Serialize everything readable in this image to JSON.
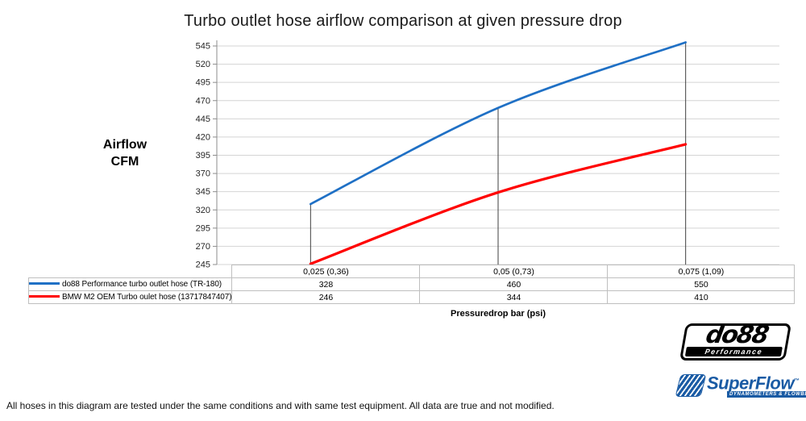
{
  "chart_data": {
    "type": "line",
    "smooth": true,
    "title": "Turbo outlet hose airflow comparison at given pressure drop",
    "ylabel": "Airflow CFM",
    "ylabel_lines": [
      "Airflow",
      "CFM"
    ],
    "xlabel": "Pressuredrop bar (psi)",
    "categories": [
      "0,025 (0,36)",
      "0,05 (0,73)",
      "0,075 (1,09)"
    ],
    "x_bar": [
      0.025,
      0.05,
      0.075
    ],
    "x_psi": [
      0.36,
      0.73,
      1.09
    ],
    "series": [
      {
        "name": "do88 Performance turbo outlet hose (TR-180)",
        "values": [
          328,
          460,
          550
        ],
        "color": "#1f70c5"
      },
      {
        "name": "BMW M2 OEM Turbo oulet hose (13717847407)",
        "values": [
          246,
          344,
          410
        ],
        "color": "#ff0000"
      }
    ],
    "y_ticks": [
      545,
      520,
      495,
      470,
      445,
      420,
      395,
      370,
      345,
      320,
      295,
      270,
      245
    ],
    "ylim": [
      245,
      545
    ],
    "grid": true,
    "drop_lines": true,
    "legend_position": "data-table-below-chart"
  },
  "footnote": "All hoses in this diagram are tested under the same conditions and with same test equipment. All data are true and not modified.",
  "logos": {
    "do88": {
      "name": "do88",
      "tagline": "Performance"
    },
    "superflow": {
      "name": "SuperFlow",
      "trademark": "™",
      "tagline": "DYNAMOMETERS & FLOWBENCHES"
    }
  },
  "colors": {
    "background": "#ffffff",
    "gridline": "#d4d4d4",
    "axis": "#8c8c8c",
    "drop_line": "#3f3f3f",
    "table_border": "#bfbfbf",
    "title_text": "#1a1a1a",
    "superflow_blue": "#1a5ba4",
    "do88_black": "#000000"
  }
}
